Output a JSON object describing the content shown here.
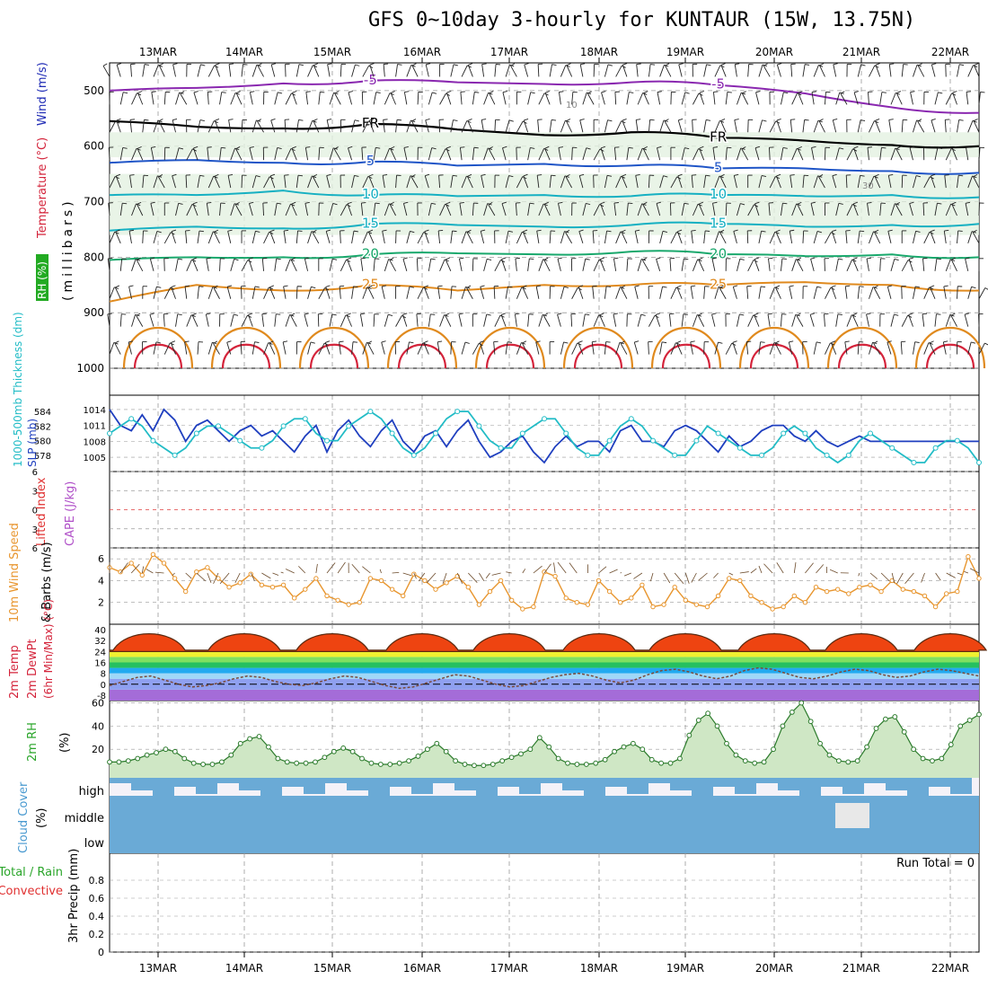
{
  "title": "GFS 0~10day 3-hourly for KUNTAUR (15W, 13.75N)",
  "colors": {
    "temp_warm": "#e08a1e",
    "temp_hot": "#d4243b",
    "temp_cold": "#1f55c7",
    "temp_teal": "#16b0c2",
    "temp_green": "#19a86c",
    "temp_violet": "#8a28b0",
    "freezing": "#000000",
    "slp": "#1f3fbf",
    "thickness": "#22bcc6",
    "wind10": "#e8962f",
    "rh2m": "#2aa52a",
    "cloud": "#6aaad6",
    "grid": "#999999"
  },
  "chart_data": [
    {
      "panel": "upper_air",
      "type": "contour",
      "y_axis_label_parts": [
        "RH (%)",
        "Temperature (°C)",
        "Wind (m/s)"
      ],
      "y_sublabel": "(millibars)",
      "yticks": [
        500,
        600,
        700,
        800,
        900,
        1000
      ],
      "ylim": [
        450,
        1000
      ],
      "log_scale": false,
      "dates": [
        "13MAR",
        "14MAR",
        "15MAR",
        "16MAR",
        "17MAR",
        "18MAR",
        "19MAR",
        "20MAR",
        "21MAR",
        "22MAR"
      ],
      "temperature_contours": [
        {
          "value": -5,
          "label": "-5",
          "color": "temp_violet",
          "levels": [
            [
              0,
              500
            ],
            [
              2,
              495
            ],
            [
              4,
              487
            ],
            [
              6,
              482
            ],
            [
              8,
              485
            ],
            [
              10,
              488
            ],
            [
              12,
              485
            ],
            [
              14,
              490
            ],
            [
              16,
              505
            ],
            [
              18,
              530
            ],
            [
              20,
              540
            ]
          ]
        },
        {
          "value": 0,
          "label": "FR",
          "color": "freezing",
          "levels": [
            [
              0,
              555
            ],
            [
              2,
              565
            ],
            [
              4,
              568
            ],
            [
              6,
              560
            ],
            [
              8,
              570
            ],
            [
              10,
              580
            ],
            [
              12,
              575
            ],
            [
              14,
              585
            ],
            [
              16,
              590
            ],
            [
              18,
              598
            ],
            [
              20,
              600
            ]
          ]
        },
        {
          "value": 5,
          "label": "5",
          "color": "temp_cold",
          "levels": [
            [
              0,
              630
            ],
            [
              2,
              625
            ],
            [
              4,
              630
            ],
            [
              6,
              628
            ],
            [
              8,
              635
            ],
            [
              10,
              632
            ],
            [
              12,
              635
            ],
            [
              14,
              640
            ],
            [
              16,
              640
            ],
            [
              18,
              645
            ],
            [
              20,
              648
            ]
          ]
        },
        {
          "value": 10,
          "label": "10",
          "color": "temp_teal",
          "levels": [
            [
              0,
              688
            ],
            [
              2,
              688
            ],
            [
              4,
              680
            ],
            [
              6,
              688
            ],
            [
              8,
              690
            ],
            [
              10,
              688
            ],
            [
              12,
              690
            ],
            [
              14,
              688
            ],
            [
              16,
              690
            ],
            [
              18,
              688
            ],
            [
              20,
              692
            ]
          ]
        },
        {
          "value": 15,
          "label": "15",
          "color": "temp_teal",
          "levels": [
            [
              0,
              752
            ],
            [
              2,
              745
            ],
            [
              4,
              748
            ],
            [
              6,
              740
            ],
            [
              8,
              742
            ],
            [
              10,
              745
            ],
            [
              12,
              742
            ],
            [
              14,
              740
            ],
            [
              16,
              745
            ],
            [
              18,
              742
            ],
            [
              20,
              740
            ]
          ]
        },
        {
          "value": 20,
          "label": "20",
          "color": "temp_green",
          "levels": [
            [
              0,
              805
            ],
            [
              2,
              800
            ],
            [
              4,
              800
            ],
            [
              6,
              795
            ],
            [
              8,
              793
            ],
            [
              10,
              795
            ],
            [
              12,
              790
            ],
            [
              14,
              795
            ],
            [
              16,
              798
            ],
            [
              18,
              795
            ],
            [
              20,
              800
            ]
          ]
        },
        {
          "value": 25,
          "label": "25",
          "color": "temp_warm",
          "levels": [
            [
              0,
              880
            ],
            [
              2,
              850
            ],
            [
              4,
              860
            ],
            [
              6,
              850
            ],
            [
              8,
              860
            ],
            [
              10,
              850
            ],
            [
              12,
              850
            ],
            [
              14,
              850
            ],
            [
              16,
              845
            ],
            [
              18,
              850
            ],
            [
              20,
              860
            ]
          ]
        }
      ],
      "rh_contour_labels": [
        "10",
        "30"
      ]
    },
    {
      "panel": "slp_thickness",
      "type": "line",
      "y_axis_label_parts": [
        "1000-500mb Thickness (dm)",
        "SLP (mb)"
      ],
      "left_ticks": [
        578,
        580,
        582,
        584
      ],
      "right_ticks": [
        1005,
        1008,
        1011,
        1014
      ],
      "series": [
        {
          "name": "SLP (mb)",
          "color": "slp",
          "values": [
            1014,
            1011,
            1010,
            1013,
            1010,
            1014,
            1012,
            1008,
            1011,
            1012,
            1010,
            1008,
            1010,
            1011,
            1009,
            1010,
            1008,
            1006,
            1009,
            1011,
            1006,
            1010,
            1012,
            1009,
            1007,
            1010,
            1012,
            1008,
            1006,
            1009,
            1010,
            1007,
            1010,
            1012,
            1008,
            1005,
            1006,
            1008,
            1009,
            1006,
            1004,
            1007,
            1009,
            1007,
            1008,
            1008,
            1006,
            1010,
            1011,
            1008,
            1008,
            1007,
            1010,
            1011,
            1010,
            1008,
            1006,
            1009,
            1007,
            1008,
            1010,
            1011,
            1011,
            1009,
            1008,
            1010,
            1008,
            1007,
            1008,
            1009,
            1008,
            1008,
            1008,
            1008,
            1008,
            1008,
            1008,
            1008,
            1008,
            1008,
            1008
          ]
        },
        {
          "name": "1000-500mb Thickness (dm)",
          "color": "thickness",
          "values": [
            581,
            582,
            583,
            582,
            580,
            579,
            578,
            579,
            581,
            582,
            582,
            581,
            580,
            579,
            579,
            580,
            582,
            583,
            583,
            581,
            580,
            580,
            582,
            583,
            584,
            583,
            581,
            579,
            578,
            579,
            581,
            583,
            584,
            584,
            582,
            580,
            579,
            579,
            581,
            582,
            583,
            583,
            581,
            579,
            578,
            578,
            580,
            582,
            583,
            582,
            580,
            579,
            578,
            578,
            580,
            582,
            581,
            580,
            579,
            578,
            578,
            579,
            581,
            582,
            581,
            579,
            578,
            577,
            578,
            580,
            581,
            580,
            579,
            578,
            577,
            577,
            579,
            580,
            580,
            579,
            577
          ]
        }
      ]
    },
    {
      "panel": "stability",
      "type": "line",
      "y_axis_label_parts": [
        "Lifted Index",
        "CAPE (J/kg)"
      ],
      "yticks": [
        6,
        3,
        0,
        -3,
        -6
      ],
      "ylim": [
        -6,
        6
      ],
      "series": []
    },
    {
      "panel": "wind10m",
      "type": "line",
      "y_axis_label_parts": [
        "10m Wind Speed",
        "& Barbs (m/s)"
      ],
      "yticks": [
        2,
        4,
        6
      ],
      "ylim": [
        0,
        7
      ],
      "series": [
        {
          "name": "10m Wind Speed",
          "color": "wind10",
          "values": [
            5.2,
            4.8,
            5.6,
            4.5,
            6.4,
            5.6,
            4.2,
            3.0,
            4.8,
            5.2,
            4.2,
            3.4,
            3.8,
            4.6,
            3.6,
            3.4,
            3.6,
            2.4,
            3.2,
            4.2,
            2.6,
            2.2,
            1.8,
            2.0,
            4.2,
            4.0,
            3.2,
            2.6,
            4.6,
            4.0,
            3.2,
            3.8,
            4.4,
            3.4,
            1.8,
            3.0,
            4.0,
            2.2,
            1.4,
            1.6,
            4.8,
            4.4,
            2.4,
            2.0,
            1.8,
            4.0,
            3.0,
            2.0,
            2.4,
            3.6,
            1.6,
            1.8,
            3.4,
            2.2,
            1.8,
            1.6,
            2.6,
            4.2,
            4.0,
            2.6,
            2.0,
            1.4,
            1.6,
            2.6,
            2.0,
            3.4,
            3.0,
            3.2,
            2.8,
            3.4,
            3.6,
            3.0,
            4.0,
            3.2,
            3.0,
            2.6,
            1.6,
            2.8,
            3.0,
            6.2,
            4.2
          ]
        }
      ]
    },
    {
      "panel": "temp2m",
      "type": "area",
      "y_axis_label_parts": [
        "2m Temp",
        "2m DewPt",
        "(6hr Min/Max) (°C)"
      ],
      "yticks": [
        40,
        32,
        24,
        16,
        8,
        0,
        -8
      ],
      "ylim": [
        -12,
        44
      ],
      "series": [
        {
          "name": "2m Temp",
          "daily_cycle_min": 25,
          "daily_cycle_max": 41
        },
        {
          "name": "2m DewPt",
          "values": [
            -1,
            2,
            5,
            6,
            3,
            0,
            -2,
            -1,
            1,
            4,
            6,
            5,
            2,
            0,
            -1,
            1,
            4,
            6,
            5,
            2,
            -1,
            -3,
            -2,
            1,
            4,
            7,
            6,
            3,
            0,
            -2,
            -1,
            2,
            5,
            7,
            8,
            6,
            3,
            1,
            3,
            7,
            10,
            11,
            9,
            6,
            4,
            6,
            10,
            12,
            11,
            8,
            5,
            4,
            6,
            9,
            11,
            10,
            7,
            5,
            6,
            9,
            11,
            10,
            8,
            6
          ]
        }
      ]
    },
    {
      "panel": "rh2m",
      "type": "area",
      "y_axis_label_parts": [
        "2m RH",
        "(%)"
      ],
      "yticks": [
        20,
        40,
        60
      ],
      "ylim": [
        0,
        62
      ],
      "series": [
        {
          "name": "2m RH",
          "color": "rh2m",
          "values": [
            9,
            9,
            10,
            12,
            15,
            17,
            20,
            18,
            12,
            8,
            7,
            7,
            9,
            15,
            25,
            29,
            31,
            22,
            12,
            9,
            8,
            8,
            9,
            13,
            18,
            21,
            18,
            12,
            8,
            7,
            7,
            8,
            10,
            14,
            20,
            25,
            18,
            10,
            7,
            6,
            6,
            7,
            10,
            13,
            16,
            20,
            30,
            22,
            12,
            8,
            7,
            7,
            8,
            11,
            18,
            22,
            25,
            20,
            11,
            8,
            8,
            12,
            32,
            45,
            51,
            40,
            25,
            15,
            10,
            8,
            9,
            20,
            40,
            52,
            60,
            44,
            25,
            15,
            10,
            9,
            10,
            22,
            38,
            46,
            48,
            35,
            20,
            12,
            10,
            12,
            24,
            40,
            45,
            50
          ]
        }
      ]
    },
    {
      "panel": "cloud_cover",
      "type": "heatmap",
      "y_axis_label_parts": [
        "Cloud Cover",
        "(%)"
      ],
      "categories": [
        "high",
        "middle",
        "low"
      ]
    },
    {
      "panel": "precip",
      "type": "bar",
      "y_axis_label_parts": [
        "Total / Rain",
        "Convective",
        "3hr Precip (mm)"
      ],
      "yticks": [
        0,
        0.2,
        0.4,
        0.6,
        0.8
      ],
      "ylim": [
        0,
        1
      ],
      "run_total": "Run Total = 0",
      "values": []
    }
  ]
}
